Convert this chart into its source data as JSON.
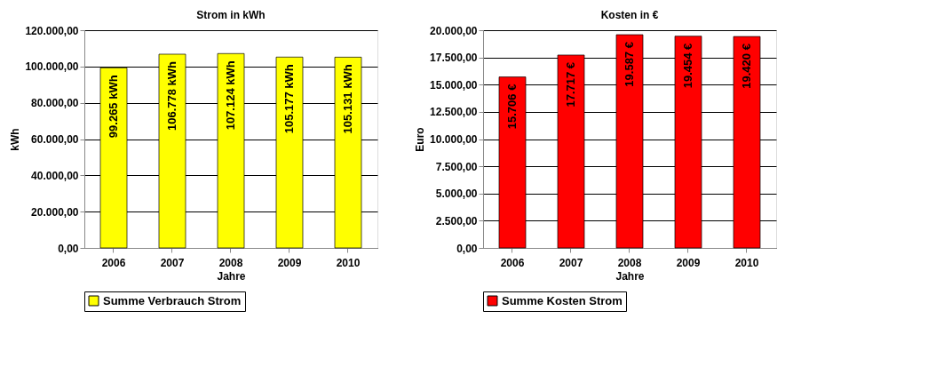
{
  "chart_data": [
    {
      "type": "bar",
      "title": "Strom in kWh",
      "xlabel": "Jahre",
      "ylabel": "kWh",
      "categories": [
        "2006",
        "2007",
        "2008",
        "2009",
        "2010"
      ],
      "series": [
        {
          "name": "Summe Verbrauch Strom",
          "color": "#ffff00",
          "values": [
            99265,
            106778,
            107124,
            105177,
            105131
          ],
          "value_labels": [
            "99.265 kWh",
            "106.778 kWh",
            "107.124 kWh",
            "105.177 kWh",
            "105.131 kWh"
          ]
        }
      ],
      "ylim": [
        0,
        120000
      ],
      "yticks": [
        {
          "value": 0,
          "label": "0,00"
        },
        {
          "value": 20000,
          "label": "20.000,00"
        },
        {
          "value": 40000,
          "label": "40.000,00"
        },
        {
          "value": 60000,
          "label": "60.000,00"
        },
        {
          "value": 80000,
          "label": "80.000,00"
        },
        {
          "value": 100000,
          "label": "100.000,00"
        },
        {
          "value": 120000,
          "label": "120.000,00"
        }
      ],
      "grid": "y",
      "legend": "bottom"
    },
    {
      "type": "bar",
      "title": "Kosten in €",
      "xlabel": "Jahre",
      "ylabel": "Euro",
      "categories": [
        "2006",
        "2007",
        "2008",
        "2009",
        "2010"
      ],
      "series": [
        {
          "name": "Summe Kosten Strom",
          "color": "#ff0000",
          "values": [
            15706,
            17717,
            19587,
            19454,
            19420
          ],
          "value_labels": [
            "15.706 €",
            "17.717 €",
            "19.587 €",
            "19.454 €",
            "19.420 €"
          ]
        }
      ],
      "ylim": [
        0,
        20000
      ],
      "yticks": [
        {
          "value": 0,
          "label": "0,00"
        },
        {
          "value": 2500,
          "label": "2.500,00"
        },
        {
          "value": 5000,
          "label": "5.000,00"
        },
        {
          "value": 7500,
          "label": "7.500,00"
        },
        {
          "value": 10000,
          "label": "10.000,00"
        },
        {
          "value": 12500,
          "label": "12.500,00"
        },
        {
          "value": 15000,
          "label": "15.000,00"
        },
        {
          "value": 17500,
          "label": "17.500,00"
        },
        {
          "value": 20000,
          "label": "20.000,00"
        }
      ],
      "grid": "y",
      "legend": "bottom"
    }
  ]
}
